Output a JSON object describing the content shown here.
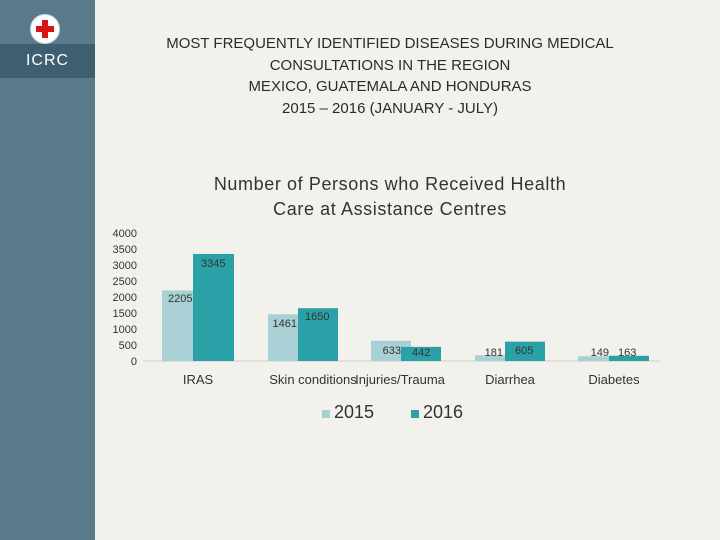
{
  "brand": {
    "org_label": "ICRC",
    "logo_icon": "red-cross-icon",
    "sidebar_color": "#5a7a8c",
    "label_bg_color": "#3f5f71"
  },
  "header": {
    "title_lines": [
      "MOST FREQUENTLY IDENTIFIED DISEASES DURING MEDICAL",
      "CONSULTATIONS IN THE REGION",
      "MEXICO, GUATEMALA AND HONDURAS",
      "2015 – 2016 (JANUARY - JULY)"
    ]
  },
  "chart_data": {
    "type": "bar",
    "title": "Number of Persons who Received Health Care at Assistance Centres",
    "title_lines": [
      "Number of Persons who Received Health",
      "Care at Assistance Centres"
    ],
    "categories": [
      "IRAS",
      "Skin conditions",
      "Injuries/Trauma",
      "Diarrhea",
      "Diabetes"
    ],
    "series": [
      {
        "name": "2015",
        "color": "#a9d1d5",
        "values": [
          2205,
          1461,
          633,
          181,
          149
        ]
      },
      {
        "name": "2016",
        "color": "#2aa1a6",
        "values": [
          3345,
          1650,
          442,
          605,
          163
        ]
      }
    ],
    "yticks": [
      0,
      500,
      1000,
      1500,
      2000,
      2500,
      3000,
      3500,
      4000
    ],
    "ylim": [
      0,
      4000
    ],
    "xlabel": "",
    "ylabel": "",
    "grid": false,
    "legend": "bottom"
  }
}
